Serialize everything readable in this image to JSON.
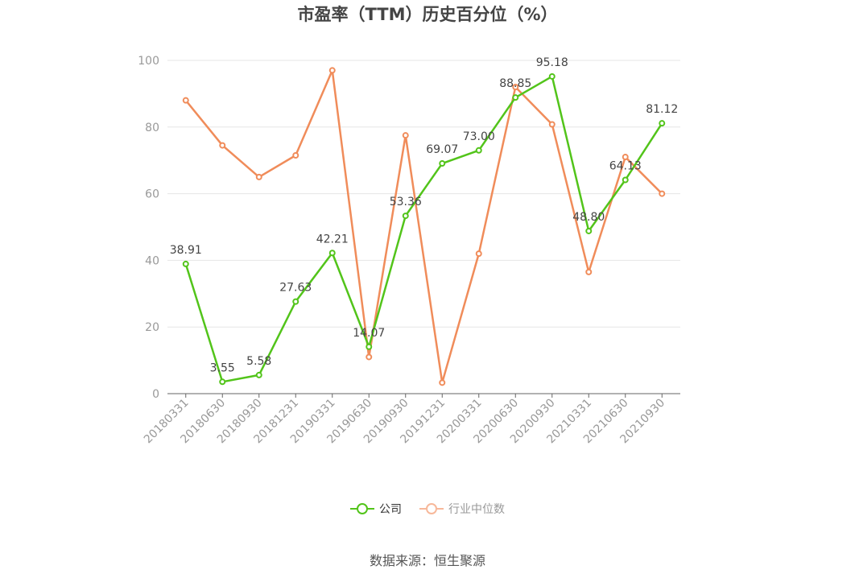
{
  "title": "市盈率（TTM）历史百分位（%）",
  "source": "数据来源：恒生聚源",
  "chart_data": {
    "type": "line",
    "title": "市盈率（TTM）历史百分位（%）",
    "x": [
      "20180331",
      "20180630",
      "20180930",
      "20181231",
      "20190331",
      "20190630",
      "20190930",
      "20191231",
      "20200331",
      "20200630",
      "20200930",
      "20210331",
      "20210630",
      "20210930"
    ],
    "ylim": [
      0,
      100
    ],
    "yticks": [
      0,
      20,
      40,
      60,
      80,
      100
    ],
    "grid": true,
    "legend_position": "bottom",
    "series": [
      {
        "name": "公司",
        "color": "#52c41a",
        "values": [
          38.91,
          3.55,
          5.58,
          27.63,
          42.21,
          14.07,
          53.36,
          69.07,
          73.0,
          88.85,
          95.18,
          48.8,
          64.13,
          81.12
        ],
        "labels": [
          "38.91",
          "3.55",
          "5.58",
          "27.63",
          "42.21",
          "14.07",
          "53.36",
          "69.07",
          "73.00",
          "88.85",
          "95.18",
          "48.80",
          "64.13",
          "81.12"
        ]
      },
      {
        "name": "行业中位数",
        "color": "#f08c5a",
        "values": [
          88,
          74.5,
          65,
          71.5,
          97,
          11,
          77.5,
          3.3,
          42,
          92,
          80.8,
          36.5,
          71,
          60
        ]
      }
    ]
  }
}
